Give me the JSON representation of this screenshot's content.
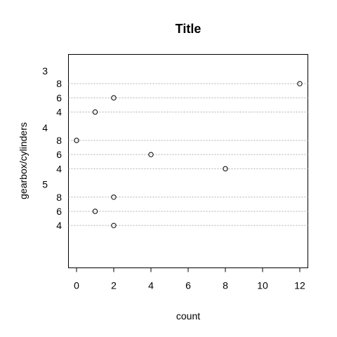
{
  "chart_data": {
    "type": "scatter",
    "title": "Title",
    "xlabel": "count",
    "ylabel": "gearbox/cylinders",
    "xlim": [
      0,
      12
    ],
    "x_ticks": [
      "0",
      "2",
      "4",
      "6",
      "8",
      "10",
      "12"
    ],
    "grid": "dotted horizontal lines per row",
    "groups": [
      {
        "label": "3",
        "rows": [
          {
            "label": "8",
            "value": 12
          },
          {
            "label": "6",
            "value": 2
          },
          {
            "label": "4",
            "value": 1
          }
        ]
      },
      {
        "label": "4",
        "rows": [
          {
            "label": "8",
            "value": 0
          },
          {
            "label": "6",
            "value": 4
          },
          {
            "label": "4",
            "value": 8
          }
        ]
      },
      {
        "label": "5",
        "rows": [
          {
            "label": "8",
            "value": 2
          },
          {
            "label": "6",
            "value": 1
          },
          {
            "label": "4",
            "value": 2
          }
        ]
      }
    ]
  }
}
